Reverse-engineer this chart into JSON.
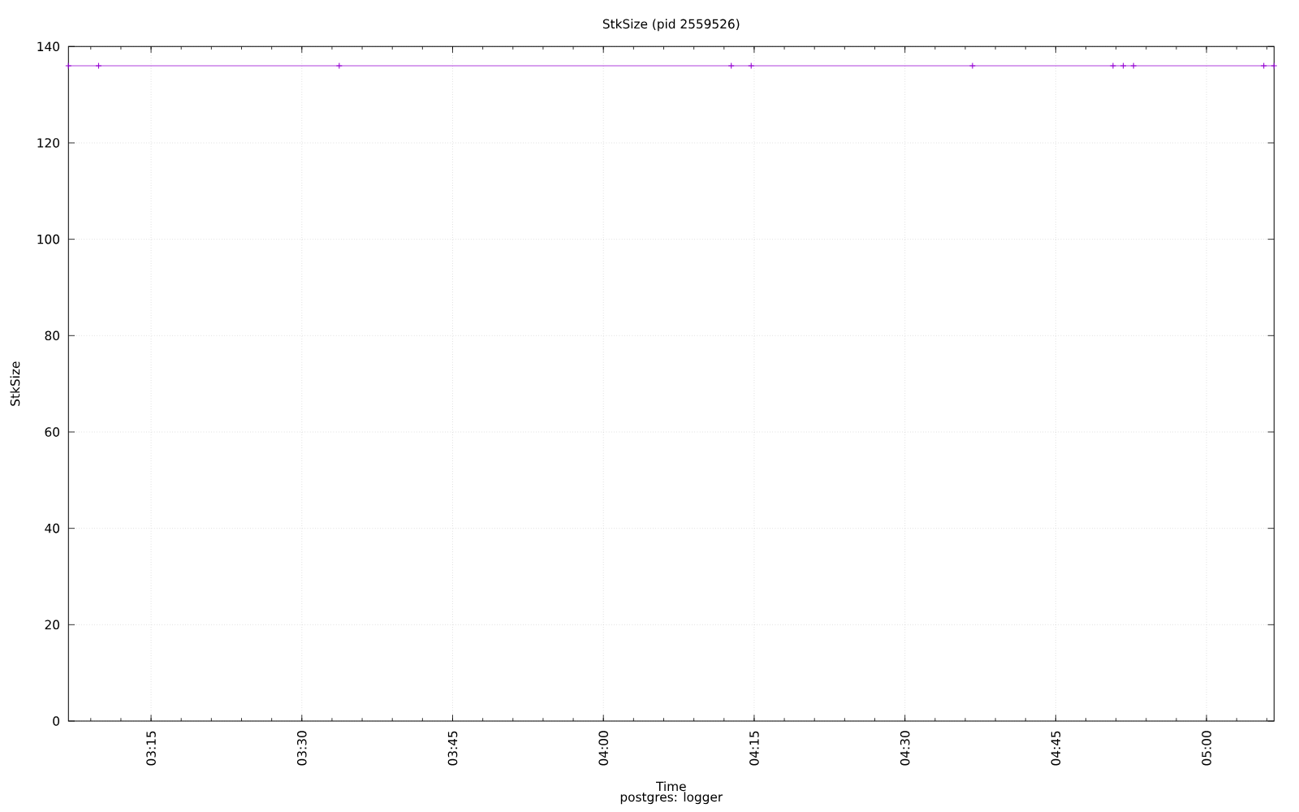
{
  "chart_data": {
    "type": "line",
    "title": "StkSize (pid 2559526)",
    "xlabel": "Time",
    "ylabel": "StkSize",
    "annotations": [
      "postgres: logger"
    ],
    "x": [
      3.113,
      3.163,
      3.562,
      4.212,
      4.245,
      4.612,
      4.845,
      4.862,
      4.879,
      5.095,
      5.112
    ],
    "series": [
      {
        "color": "#9400d3",
        "values": [
          136,
          136,
          136,
          136,
          136,
          136,
          136,
          136,
          136,
          136,
          136
        ]
      }
    ],
    "xlim": [
      3.113,
      5.112
    ],
    "xticks": [
      {
        "value": 3.25,
        "label": "03:15"
      },
      {
        "value": 3.5,
        "label": "03:30"
      },
      {
        "value": 3.75,
        "label": "03:45"
      },
      {
        "value": 4.0,
        "label": "04:00"
      },
      {
        "value": 4.25,
        "label": "04:15"
      },
      {
        "value": 4.5,
        "label": "04:30"
      },
      {
        "value": 4.75,
        "label": "04:45"
      },
      {
        "value": 5.0,
        "label": "05:00"
      }
    ],
    "ylim": [
      0,
      140
    ],
    "yticks": [
      0,
      20,
      40,
      60,
      80,
      100,
      120,
      140
    ],
    "grid": true,
    "marker": "cross",
    "line_style": "solid"
  }
}
